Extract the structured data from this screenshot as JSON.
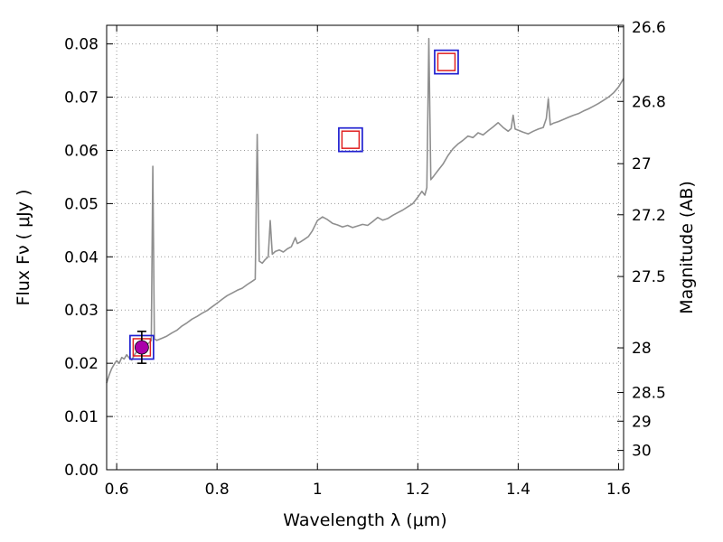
{
  "chart_data": {
    "type": "line",
    "title": "",
    "xlabel": "Wavelength  λ (μm)",
    "ylabel": "Flux  Fν  ( μJy )",
    "ylabel_right": "Magnitude (AB)",
    "xlim": [
      0.58,
      1.61
    ],
    "ylim": [
      0,
      0.0835
    ],
    "grid": true,
    "grid_style": "dotted",
    "legend": "none",
    "x_ticks": [
      {
        "value": 0.6,
        "label": "0.6"
      },
      {
        "value": 0.8,
        "label": "0.8"
      },
      {
        "value": 1.0,
        "label": "1"
      },
      {
        "value": 1.2,
        "label": "1.2"
      },
      {
        "value": 1.4,
        "label": "1.4"
      },
      {
        "value": 1.6,
        "label": "1.6"
      }
    ],
    "y_ticks": [
      {
        "value": 0.0,
        "label": "0.00"
      },
      {
        "value": 0.01,
        "label": "0.01"
      },
      {
        "value": 0.02,
        "label": "0.02"
      },
      {
        "value": 0.03,
        "label": "0.03"
      },
      {
        "value": 0.04,
        "label": "0.04"
      },
      {
        "value": 0.05,
        "label": "0.05"
      },
      {
        "value": 0.06,
        "label": "0.06"
      },
      {
        "value": 0.07,
        "label": "0.07"
      },
      {
        "value": 0.08,
        "label": "0.08"
      }
    ],
    "y_ticks_right": [
      {
        "flux": 0.0832,
        "label": "26.6"
      },
      {
        "flux": 0.0692,
        "label": "26.8"
      },
      {
        "flux": 0.0575,
        "label": "27"
      },
      {
        "flux": 0.0479,
        "label": "27.2"
      },
      {
        "flux": 0.0363,
        "label": "27.5"
      },
      {
        "flux": 0.0229,
        "label": "28"
      },
      {
        "flux": 0.0145,
        "label": "28.5"
      },
      {
        "flux": 0.00912,
        "label": "29"
      },
      {
        "flux": 0.00363,
        "label": "30"
      }
    ],
    "series": [
      {
        "name": "galaxy-spectrum",
        "kind": "line",
        "color": "#8f8f8f",
        "width": 1.6,
        "x": [
          0.58,
          0.585,
          0.59,
          0.595,
          0.6,
          0.605,
          0.61,
          0.615,
          0.62,
          0.625,
          0.63,
          0.635,
          0.64,
          0.645,
          0.65,
          0.655,
          0.66,
          0.665,
          0.669,
          0.672,
          0.675,
          0.68,
          0.69,
          0.7,
          0.71,
          0.72,
          0.73,
          0.74,
          0.75,
          0.76,
          0.77,
          0.78,
          0.79,
          0.8,
          0.81,
          0.82,
          0.83,
          0.84,
          0.85,
          0.86,
          0.87,
          0.876,
          0.88,
          0.884,
          0.89,
          0.896,
          0.902,
          0.906,
          0.91,
          0.916,
          0.924,
          0.932,
          0.94,
          0.948,
          0.956,
          0.96,
          0.966,
          0.974,
          0.982,
          0.99,
          1.0,
          1.01,
          1.02,
          1.03,
          1.04,
          1.05,
          1.06,
          1.07,
          1.08,
          1.09,
          1.1,
          1.11,
          1.12,
          1.13,
          1.14,
          1.15,
          1.16,
          1.17,
          1.18,
          1.19,
          1.2,
          1.208,
          1.214,
          1.218,
          1.222,
          1.226,
          1.232,
          1.24,
          1.25,
          1.26,
          1.27,
          1.28,
          1.29,
          1.3,
          1.31,
          1.32,
          1.33,
          1.34,
          1.35,
          1.36,
          1.37,
          1.38,
          1.386,
          1.39,
          1.394,
          1.4,
          1.41,
          1.42,
          1.43,
          1.44,
          1.45,
          1.456,
          1.46,
          1.464,
          1.47,
          1.48,
          1.49,
          1.5,
          1.51,
          1.52,
          1.53,
          1.54,
          1.55,
          1.56,
          1.57,
          1.58,
          1.59,
          1.6,
          1.61
        ],
        "y": [
          0.0163,
          0.0178,
          0.019,
          0.0198,
          0.0205,
          0.02,
          0.0211,
          0.0208,
          0.0216,
          0.021,
          0.0206,
          0.0215,
          0.0222,
          0.0227,
          0.0231,
          0.0228,
          0.0235,
          0.0239,
          0.0243,
          0.057,
          0.0246,
          0.0243,
          0.0247,
          0.0251,
          0.0257,
          0.0262,
          0.027,
          0.0276,
          0.0283,
          0.0288,
          0.0294,
          0.0299,
          0.0306,
          0.0313,
          0.032,
          0.0327,
          0.0332,
          0.0337,
          0.0341,
          0.0348,
          0.0354,
          0.0358,
          0.063,
          0.0392,
          0.0388,
          0.0395,
          0.04,
          0.0468,
          0.0405,
          0.041,
          0.0413,
          0.0409,
          0.0415,
          0.0419,
          0.0436,
          0.0425,
          0.0428,
          0.0433,
          0.0438,
          0.0449,
          0.0468,
          0.0475,
          0.047,
          0.0463,
          0.046,
          0.0456,
          0.0459,
          0.0455,
          0.0458,
          0.0461,
          0.0459,
          0.0466,
          0.0474,
          0.0469,
          0.0472,
          0.0478,
          0.0483,
          0.0488,
          0.0494,
          0.05,
          0.0512,
          0.0523,
          0.0516,
          0.053,
          0.081,
          0.0545,
          0.0552,
          0.0562,
          0.0574,
          0.059,
          0.0603,
          0.0612,
          0.0619,
          0.0627,
          0.0624,
          0.0633,
          0.0629,
          0.0637,
          0.0644,
          0.0652,
          0.0643,
          0.0636,
          0.0641,
          0.0666,
          0.064,
          0.0638,
          0.0634,
          0.0631,
          0.0636,
          0.064,
          0.0643,
          0.066,
          0.0697,
          0.0648,
          0.0651,
          0.0654,
          0.0658,
          0.0662,
          0.0666,
          0.0669,
          0.0674,
          0.0678,
          0.0683,
          0.0688,
          0.0694,
          0.07,
          0.0708,
          0.0719,
          0.0735
        ]
      },
      {
        "name": "photometry-model-squares",
        "kind": "squares",
        "outer_color": "#2020d0",
        "inner_color": "#e02020",
        "outer_size": 26,
        "inner_size": 19,
        "points": [
          {
            "x": 0.65,
            "y": 0.023
          },
          {
            "x": 1.066,
            "y": 0.062
          },
          {
            "x": 1.257,
            "y": 0.0766
          }
        ]
      },
      {
        "name": "photometry-observed-circle",
        "kind": "circle",
        "color": "#aa00aa",
        "edge_color": "#000000",
        "error_color": "#000000",
        "size": 15,
        "points": [
          {
            "x": 0.65,
            "y": 0.023,
            "yerr": 0.003
          }
        ]
      }
    ]
  }
}
